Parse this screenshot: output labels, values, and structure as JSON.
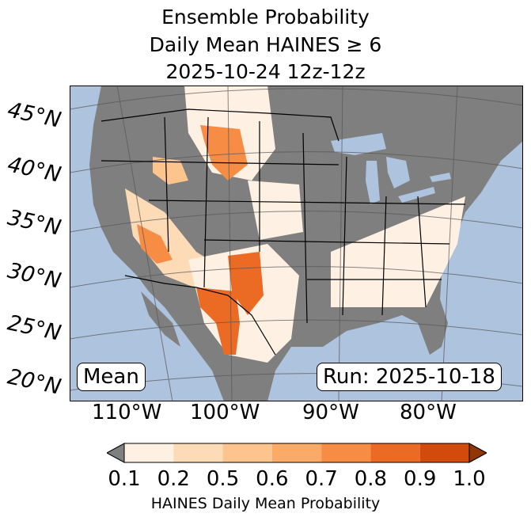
{
  "title": {
    "line1": "Ensemble Probability",
    "line2": "Daily Mean HAINES ≥ 6",
    "line3": "2025-10-24 12z-12z"
  },
  "map": {
    "ocean_color": "#adc3de",
    "land_nodata_color": "#7f7f7f",
    "lat_labels": [
      "45°N",
      "40°N",
      "35°N",
      "30°N",
      "25°N",
      "20°N"
    ],
    "lon_labels": [
      "110°W",
      "100°W",
      "90°W",
      "80°W"
    ],
    "stat_label": "Mean",
    "run_label": "Run: 2025-10-18"
  },
  "colorbar": {
    "ticks": [
      "0.1",
      "0.2",
      "0.5",
      "0.6",
      "0.7",
      "0.8",
      "0.9",
      "1.0"
    ],
    "colors": [
      "#fef1e3",
      "#fddbb7",
      "#fdc48e",
      "#fcaa67",
      "#f78c45",
      "#eb6a24",
      "#d24b0c"
    ],
    "under_color": "#7f7f7f",
    "over_color": "#8f3604",
    "label": "HAINES Daily Mean Probability"
  }
}
